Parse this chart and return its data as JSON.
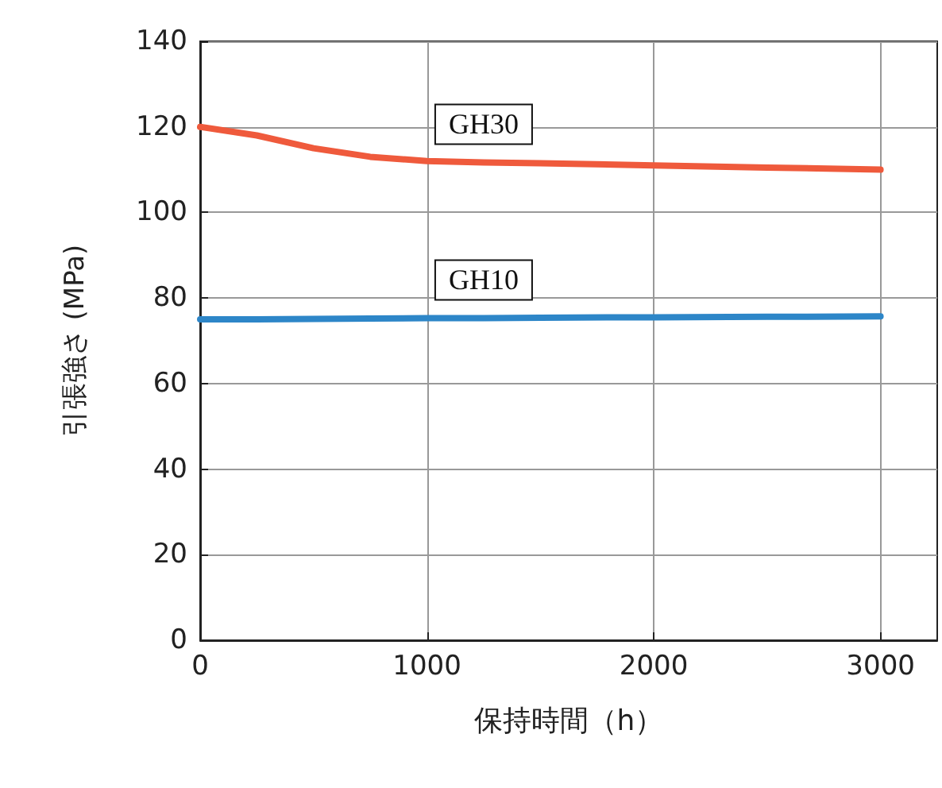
{
  "chart_data": {
    "type": "line",
    "xlabel": "保持時間（h）",
    "ylabel": "引張強さ (MPa)",
    "x": [
      0,
      250,
      500,
      750,
      1000,
      1250,
      1500,
      2000,
      2500,
      3000
    ],
    "series": [
      {
        "name": "GH30",
        "color": "#ef5a3c",
        "values": [
          120,
          118,
          115,
          113,
          112,
          111.7,
          111.5,
          111,
          110.5,
          110
        ]
      },
      {
        "name": "GH10",
        "color": "#2d86c8",
        "values": [
          75,
          75,
          75.1,
          75.2,
          75.3,
          75.3,
          75.4,
          75.5,
          75.6,
          75.7
        ]
      }
    ],
    "xlim": [
      0,
      3250
    ],
    "xticks": [
      0,
      1000,
      2000,
      3000
    ],
    "ylim": [
      0,
      140
    ],
    "yticks": [
      0,
      20,
      40,
      60,
      80,
      100,
      120,
      140
    ],
    "grid": true,
    "legend": false,
    "marker": "none",
    "line_style": "solid"
  }
}
